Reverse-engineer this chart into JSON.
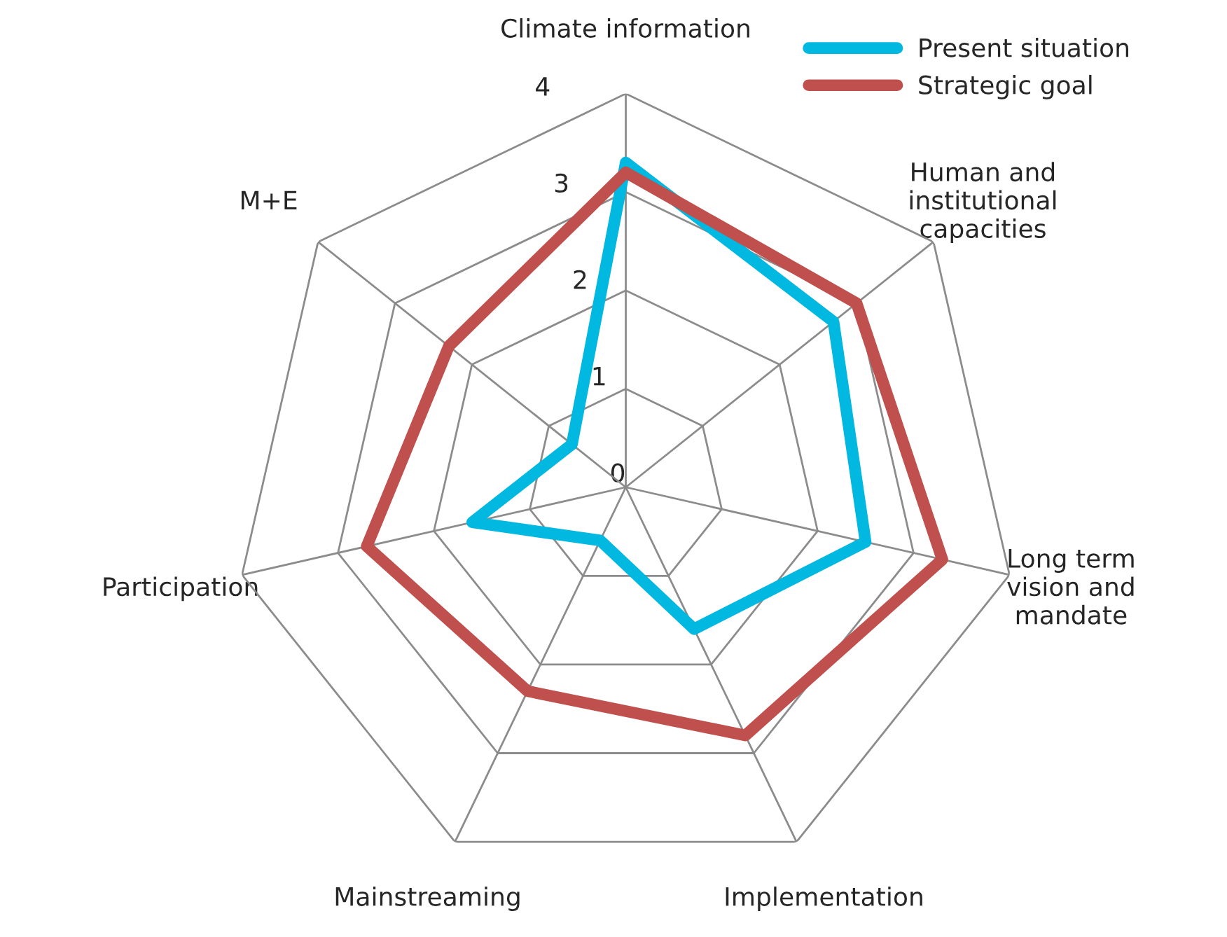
{
  "chart_data": {
    "type": "radar",
    "categories": [
      "Climate information",
      "Human and\ninstitutional\ncapacities",
      "Long term\nvision and\nmandate",
      "Implementation",
      "Mainstreaming",
      "Participation",
      "M+E"
    ],
    "series": [
      {
        "name": "Present situation",
        "color": "#00b8e0",
        "values": [
          3.3,
          2.7,
          2.5,
          1.6,
          0.6,
          1.6,
          0.7
        ]
      },
      {
        "name": "Strategic goal",
        "color": "#c0504d",
        "values": [
          3.2,
          3.0,
          3.3,
          2.8,
          2.3,
          2.7,
          2.3
        ]
      }
    ],
    "ylim": [
      0,
      4
    ],
    "yticks": [
      0,
      1,
      2,
      3,
      4
    ],
    "grid": true,
    "legend": "top right",
    "marker": "none",
    "line_style": "solid"
  }
}
